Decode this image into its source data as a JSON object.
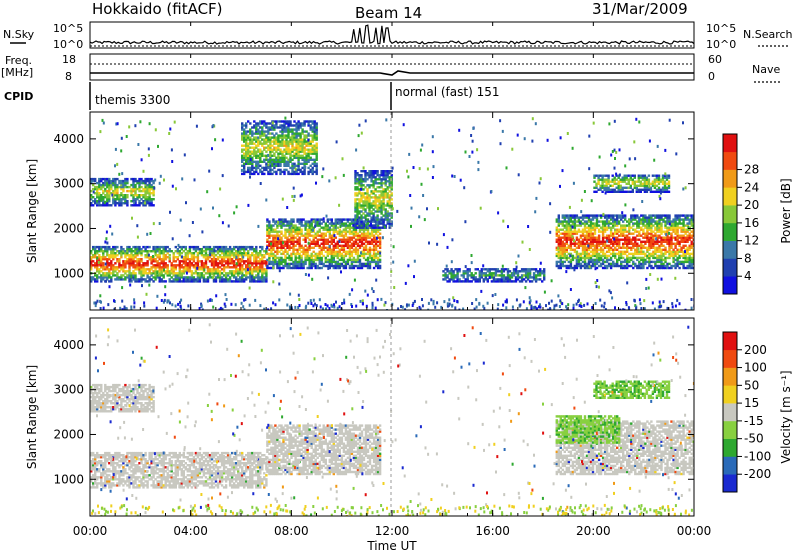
{
  "header": {
    "site": "Hokkaido (fitACF)",
    "beam": "Beam 14",
    "date": "31/Mar/2009"
  },
  "top_panels": {
    "nsky_label": "N.Sky",
    "nsky_ticks": [
      "10^5",
      "10^0"
    ],
    "nsearch_label": "N.Search",
    "nsearch_ticks": [
      "10^5",
      "10^0"
    ],
    "freq_label": "Freq.",
    "freq_unit": "[MHz]",
    "freq_ticks": [
      "18",
      "8"
    ],
    "nave_label": "Nave",
    "nave_ticks": [
      "60",
      "0"
    ],
    "cpid_label": "CPID",
    "cpid_modes": [
      {
        "label": "themis 3300",
        "start_hour": 0
      },
      {
        "label": "normal (fast) 151",
        "start_hour": 12
      }
    ]
  },
  "chart_data": [
    {
      "type": "heatmap",
      "panel": "power",
      "xlabel": "Time UT",
      "ylabel": "Slant Range [km]",
      "x_range_hours": [
        0,
        24
      ],
      "x_tick_labels": [
        "00:00",
        "04:00",
        "08:00",
        "12:00",
        "16:00",
        "20:00",
        "00:00"
      ],
      "y_range_km": [
        180,
        4600
      ],
      "y_tick_labels": [
        "1000",
        "2000",
        "3000",
        "4000"
      ],
      "colorbar": {
        "label": "Power [dB]",
        "tick_labels": [
          "4",
          "8",
          "12",
          "16",
          "20",
          "24",
          "28"
        ],
        "colors": [
          "#1010e0",
          "#2040b0",
          "#3a78a8",
          "#2ea830",
          "#88c838",
          "#f0d020",
          "#f09a18",
          "#f04a10",
          "#e01010"
        ]
      },
      "echo_regions": [
        {
          "x_hours": [
            0,
            7
          ],
          "y_km": [
            800,
            1600
          ],
          "level": "high"
        },
        {
          "x_hours": [
            7,
            11.5
          ],
          "y_km": [
            1100,
            2200
          ],
          "level": "high"
        },
        {
          "x_hours": [
            0,
            2.5
          ],
          "y_km": [
            2500,
            3100
          ],
          "level": "mid"
        },
        {
          "x_hours": [
            6,
            9
          ],
          "y_km": [
            3200,
            4400
          ],
          "level": "mid"
        },
        {
          "x_hours": [
            10.5,
            12
          ],
          "y_km": [
            2000,
            3300
          ],
          "level": "mid"
        },
        {
          "x_hours": [
            14,
            18
          ],
          "y_km": [
            800,
            1100
          ],
          "level": "low"
        },
        {
          "x_hours": [
            18.5,
            24
          ],
          "y_km": [
            1100,
            2300
          ],
          "level": "high"
        },
        {
          "x_hours": [
            20,
            23
          ],
          "y_km": [
            2800,
            3200
          ],
          "level": "mid"
        }
      ]
    },
    {
      "type": "heatmap",
      "panel": "velocity",
      "xlabel": "Time UT",
      "ylabel": "Slant Range [km]",
      "x_range_hours": [
        0,
        24
      ],
      "x_tick_labels": [
        "00:00",
        "04:00",
        "08:00",
        "12:00",
        "16:00",
        "20:00",
        "00:00"
      ],
      "y_range_km": [
        180,
        4600
      ],
      "y_tick_labels": [
        "1000",
        "2000",
        "3000",
        "4000"
      ],
      "colorbar": {
        "label": "Velocity [m s⁻¹]",
        "tick_labels": [
          "200",
          "100",
          "50",
          "15",
          "-15",
          "-50",
          "-100",
          "-200"
        ],
        "colors": [
          "#1a2ad0",
          "#2a6ab8",
          "#2ea830",
          "#88d040",
          "#c8c8c0",
          "#f0d020",
          "#f09a18",
          "#f04a10",
          "#e01010"
        ]
      },
      "echo_regions": [
        {
          "x_hours": [
            0,
            7
          ],
          "y_km": [
            800,
            1600
          ],
          "level": "ground"
        },
        {
          "x_hours": [
            7,
            11.5
          ],
          "y_km": [
            1100,
            2200
          ],
          "level": "ground"
        },
        {
          "x_hours": [
            0,
            2.5
          ],
          "y_km": [
            2500,
            3100
          ],
          "level": "ground"
        },
        {
          "x_hours": [
            18.5,
            24
          ],
          "y_km": [
            1100,
            2300
          ],
          "level": "ground"
        },
        {
          "x_hours": [
            18.5,
            21
          ],
          "y_km": [
            1800,
            2400
          ],
          "level": "ionospheric"
        },
        {
          "x_hours": [
            20,
            23
          ],
          "y_km": [
            2800,
            3200
          ],
          "level": "ionospheric"
        }
      ]
    }
  ]
}
